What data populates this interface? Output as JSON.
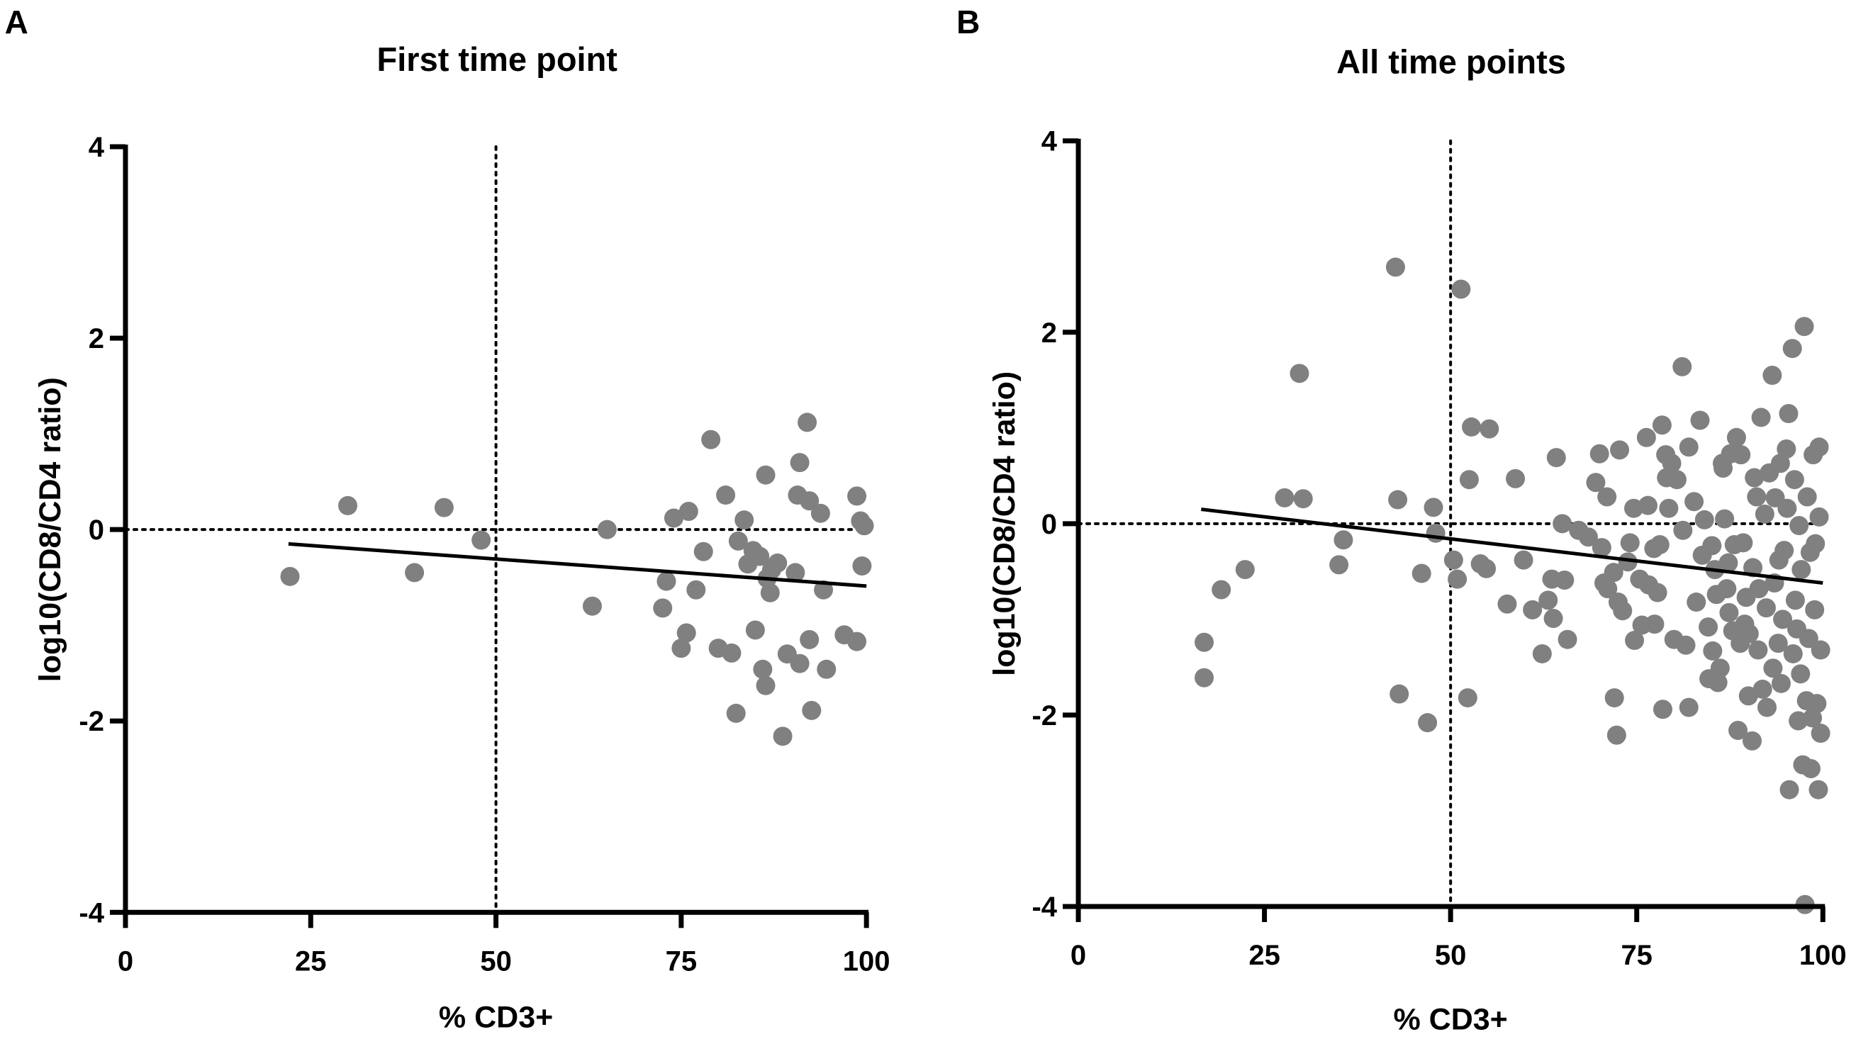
{
  "chart_data": [
    {
      "type": "scatter",
      "panel_label": "A",
      "title": "First time point",
      "xlabel": "% CD3+",
      "ylabel": "log10(CD8/CD4 ratio)",
      "xlim": [
        0,
        100
      ],
      "ylim": [
        -4,
        4
      ],
      "xticks": [
        "0",
        "25",
        "50",
        "75",
        "100"
      ],
      "yticks": [
        "-4",
        "-2",
        "0",
        "2",
        "4"
      ],
      "xtick_values": [
        0,
        25,
        50,
        75,
        100
      ],
      "ytick_values": [
        -4,
        -2,
        0,
        2,
        4
      ],
      "reference_lines": {
        "x": 50,
        "y": 0,
        "style": "dotted"
      },
      "regression_line": {
        "x": [
          22,
          100
        ],
        "y": [
          -0.15,
          -0.59
        ]
      },
      "point_color": "#808080",
      "points": [
        [
          22.2,
          -0.49
        ],
        [
          30,
          0.25
        ],
        [
          39,
          -0.45
        ],
        [
          43,
          0.23
        ],
        [
          48,
          -0.11
        ],
        [
          63,
          -0.8
        ],
        [
          65,
          0
        ],
        [
          72.5,
          -0.82
        ],
        [
          73,
          -0.54
        ],
        [
          74,
          0.12
        ],
        [
          75,
          -1.24
        ],
        [
          75.7,
          -1.08
        ],
        [
          76,
          0.19
        ],
        [
          77,
          -0.63
        ],
        [
          78,
          -0.23
        ],
        [
          79,
          0.94
        ],
        [
          80,
          -1.24
        ],
        [
          81,
          0.36
        ],
        [
          81.8,
          -1.29
        ],
        [
          82.4,
          -1.92
        ],
        [
          82.7,
          -0.12
        ],
        [
          83.5,
          0.1
        ],
        [
          84,
          -0.36
        ],
        [
          84.7,
          -0.22
        ],
        [
          85,
          -1.05
        ],
        [
          85.6,
          -0.28
        ],
        [
          86,
          -1.46
        ],
        [
          86.4,
          0.57
        ],
        [
          86.4,
          -1.63
        ],
        [
          86.6,
          -0.51
        ],
        [
          87,
          -0.66
        ],
        [
          87.2,
          -0.42
        ],
        [
          88,
          -0.35
        ],
        [
          88.7,
          -2.16
        ],
        [
          89.3,
          -1.3
        ],
        [
          90.4,
          -0.45
        ],
        [
          91,
          -1.4
        ],
        [
          90.7,
          0.36
        ],
        [
          91,
          0.7
        ],
        [
          92,
          1.12
        ],
        [
          92.3,
          -1.15
        ],
        [
          92.3,
          0.3
        ],
        [
          92.6,
          -1.89
        ],
        [
          93.8,
          0.17
        ],
        [
          94.2,
          -0.63
        ],
        [
          94.6,
          -1.46
        ],
        [
          97,
          -1.1
        ],
        [
          98.7,
          0.35
        ],
        [
          98.7,
          -1.17
        ],
        [
          99.2,
          0.09
        ],
        [
          99.7,
          0.04
        ],
        [
          99.4,
          -0.38
        ]
      ]
    },
    {
      "type": "scatter",
      "panel_label": "B",
      "title": "All time points",
      "xlabel": "% CD3+",
      "ylabel": "log10(CD8/CD4 ratio)",
      "xlim": [
        0,
        100
      ],
      "ylim": [
        -4,
        4
      ],
      "xticks": [
        "0",
        "25",
        "50",
        "75",
        "100"
      ],
      "yticks": [
        "-4",
        "-2",
        "0",
        "2",
        "4"
      ],
      "xtick_values": [
        0,
        25,
        50,
        75,
        100
      ],
      "ytick_values": [
        -4,
        -2,
        0,
        2,
        4
      ],
      "reference_lines": {
        "x": 50,
        "y": 0,
        "style": "dotted"
      },
      "regression_line": {
        "x": [
          16.5,
          100
        ],
        "y": [
          0.15,
          -0.62
        ]
      },
      "point_color": "#808080",
      "points": [
        [
          16.9,
          -1.24
        ],
        [
          16.9,
          -1.61
        ],
        [
          19.2,
          -0.69
        ],
        [
          22.4,
          -0.48
        ],
        [
          27.7,
          0.27
        ],
        [
          29.7,
          1.57
        ],
        [
          30.2,
          0.26
        ],
        [
          35,
          -0.43
        ],
        [
          35.6,
          -0.17
        ],
        [
          42.6,
          2.68
        ],
        [
          42.9,
          0.25
        ],
        [
          43.1,
          -1.78
        ],
        [
          46.1,
          -0.52
        ],
        [
          46.9,
          -2.08
        ],
        [
          47.7,
          0.17
        ],
        [
          48,
          -0.1
        ],
        [
          50.4,
          -0.38
        ],
        [
          50.9,
          -0.58
        ],
        [
          51.4,
          2.45
        ],
        [
          52.3,
          -1.82
        ],
        [
          52.5,
          0.46
        ],
        [
          52.8,
          1.01
        ],
        [
          54,
          -0.42
        ],
        [
          55.2,
          0.99
        ],
        [
          54.8,
          -0.47
        ],
        [
          57.6,
          -0.84
        ],
        [
          58.7,
          0.47
        ],
        [
          59.8,
          -0.38
        ],
        [
          61,
          -0.9
        ],
        [
          62.3,
          -1.36
        ],
        [
          63.1,
          -0.8
        ],
        [
          63.6,
          -0.58
        ],
        [
          63.8,
          -0.99
        ],
        [
          64.2,
          0.69
        ],
        [
          65,
          0
        ],
        [
          65.3,
          -0.59
        ],
        [
          65.7,
          -1.21
        ],
        [
          67.2,
          -0.07
        ],
        [
          68.5,
          -0.14
        ],
        [
          69.5,
          0.43
        ],
        [
          70,
          0.73
        ],
        [
          70.3,
          -0.25
        ],
        [
          70.6,
          -0.62
        ],
        [
          71,
          0.28
        ],
        [
          71.1,
          -0.68
        ],
        [
          71.9,
          -0.51
        ],
        [
          72,
          -1.82
        ],
        [
          72.3,
          -2.21
        ],
        [
          72.5,
          -0.82
        ],
        [
          72.7,
          0.77
        ],
        [
          73.1,
          -0.91
        ],
        [
          73.8,
          -0.4
        ],
        [
          74.1,
          -0.2
        ],
        [
          74.6,
          0.16
        ],
        [
          74.7,
          -1.22
        ],
        [
          75.4,
          -0.58
        ],
        [
          75.7,
          -1.06
        ],
        [
          76.3,
          0.9
        ],
        [
          76.5,
          0.19
        ],
        [
          76.6,
          -0.64
        ],
        [
          77.3,
          -0.26
        ],
        [
          77.4,
          -1.05
        ],
        [
          77.8,
          -0.72
        ],
        [
          78.1,
          -0.22
        ],
        [
          78.4,
          1.03
        ],
        [
          78.5,
          -1.94
        ],
        [
          78.9,
          0.72
        ],
        [
          79,
          0.48
        ],
        [
          79.3,
          0.16
        ],
        [
          79.7,
          0.63
        ],
        [
          80,
          -1.21
        ],
        [
          80.4,
          0.46
        ],
        [
          81.1,
          1.64
        ],
        [
          81.2,
          -0.07
        ],
        [
          81.6,
          -1.27
        ],
        [
          82,
          -1.92
        ],
        [
          82,
          0.8
        ],
        [
          82.7,
          0.23
        ],
        [
          83,
          -0.82
        ],
        [
          83.5,
          1.08
        ],
        [
          83.8,
          -0.33
        ],
        [
          84.1,
          0.04
        ],
        [
          84.6,
          -1.08
        ],
        [
          84.7,
          -1.62
        ],
        [
          85.1,
          -0.23
        ],
        [
          85.2,
          -1.33
        ],
        [
          85.5,
          -0.48
        ],
        [
          85.7,
          -0.74
        ],
        [
          85.9,
          -1.66
        ],
        [
          86.2,
          -1.51
        ],
        [
          86.5,
          0.63
        ],
        [
          86.6,
          0.58
        ],
        [
          86.8,
          0.05
        ],
        [
          87.1,
          -0.68
        ],
        [
          87.3,
          -0.41
        ],
        [
          87.4,
          -0.93
        ],
        [
          87.6,
          0.73
        ],
        [
          87.9,
          -1.12
        ],
        [
          88.1,
          -0.22
        ],
        [
          88.4,
          0.9
        ],
        [
          88.6,
          -2.16
        ],
        [
          88.9,
          -1.25
        ],
        [
          89,
          0.72
        ],
        [
          89.3,
          -0.2
        ],
        [
          89.5,
          -1.05
        ],
        [
          89.7,
          -0.77
        ],
        [
          90,
          -1.8
        ],
        [
          90.1,
          -1.15
        ],
        [
          90.5,
          -2.27
        ],
        [
          90.6,
          -0.46
        ],
        [
          90.8,
          0.48
        ],
        [
          91.1,
          0.28
        ],
        [
          91.3,
          -1.32
        ],
        [
          91.4,
          -0.68
        ],
        [
          91.7,
          1.11
        ],
        [
          91.9,
          -1.73
        ],
        [
          92.2,
          0.1
        ],
        [
          92.4,
          -0.88
        ],
        [
          92.5,
          -1.92
        ],
        [
          92.8,
          0.53
        ],
        [
          93.2,
          1.55
        ],
        [
          93.3,
          -1.51
        ],
        [
          93.5,
          -0.62
        ],
        [
          93.6,
          0.27
        ],
        [
          94,
          -1.25
        ],
        [
          94.1,
          -0.38
        ],
        [
          94.3,
          0.63
        ],
        [
          94.4,
          -1.67
        ],
        [
          94.6,
          -1
        ],
        [
          94.8,
          -0.28
        ],
        [
          95.1,
          0.78
        ],
        [
          95.2,
          0.16
        ],
        [
          95.4,
          1.15
        ],
        [
          95.5,
          -2.78
        ],
        [
          95.9,
          1.83
        ],
        [
          96,
          -1.36
        ],
        [
          96.2,
          0.46
        ],
        [
          96.3,
          -0.8
        ],
        [
          96.5,
          -1.1
        ],
        [
          96.7,
          -2.06
        ],
        [
          96.8,
          -0.02
        ],
        [
          97,
          -1.57
        ],
        [
          97.1,
          -0.48
        ],
        [
          97.3,
          -2.52
        ],
        [
          97.5,
          2.06
        ],
        [
          97.6,
          -3.98
        ],
        [
          97.8,
          -1.85
        ],
        [
          97.9,
          0.28
        ],
        [
          98.1,
          -1.2
        ],
        [
          98.3,
          -0.3
        ],
        [
          98.4,
          -2.56
        ],
        [
          98.6,
          -2.03
        ],
        [
          98.7,
          0.72
        ],
        [
          98.9,
          -0.9
        ],
        [
          99,
          -0.21
        ],
        [
          99.2,
          -1.88
        ],
        [
          99.4,
          -2.78
        ],
        [
          99.5,
          0.07
        ],
        [
          99.5,
          0.8
        ],
        [
          99.7,
          -1.32
        ],
        [
          99.7,
          -2.19
        ]
      ]
    }
  ]
}
